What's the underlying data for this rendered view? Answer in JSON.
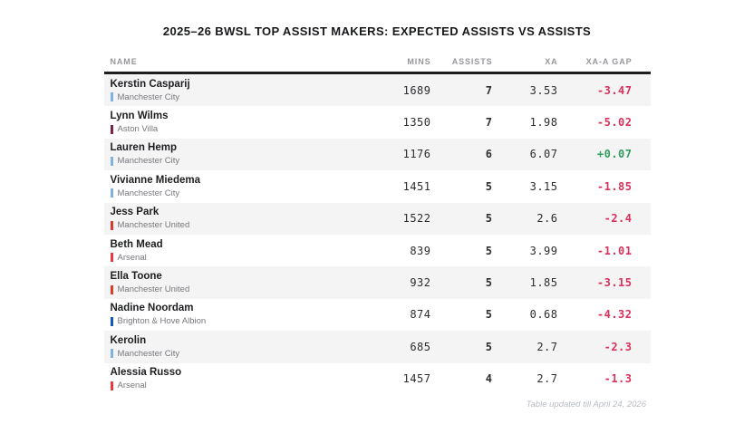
{
  "title": "2025–26 BWSL TOP ASSIST MAKERS: EXPECTED ASSISTS VS ASSISTS",
  "footer": "Table updated till April 24, 2026",
  "colors": {
    "positive": "#2f9e5f",
    "negative": "#d8315b",
    "header_text": "#96979b",
    "rule": "#1d1e20",
    "shaded_row": "#f4f4f5"
  },
  "chart_data": {
    "type": "table",
    "title": "2025–26 BWSL TOP ASSIST MAKERS: EXPECTED ASSISTS VS ASSISTS",
    "columns": [
      "NAME",
      "MINS",
      "ASSISTS",
      "XA",
      "XA-A GAP"
    ],
    "rows": [
      {
        "name": "Kerstin Casparij",
        "team": "Manchester City",
        "team_color": "#7fb2de",
        "mins": "1689",
        "assists": "7",
        "xa": "3.53",
        "gap": "-3.47"
      },
      {
        "name": "Lynn Wilms",
        "team": "Aston Villa",
        "team_color": "#7d2248",
        "mins": "1350",
        "assists": "7",
        "xa": "1.98",
        "gap": "-5.02"
      },
      {
        "name": "Lauren Hemp",
        "team": "Manchester City",
        "team_color": "#7fb2de",
        "mins": "1176",
        "assists": "6",
        "xa": "6.07",
        "gap": "+0.07"
      },
      {
        "name": "Vivianne Miedema",
        "team": "Manchester City",
        "team_color": "#7fb2de",
        "mins": "1451",
        "assists": "5",
        "xa": "3.15",
        "gap": "-1.85"
      },
      {
        "name": "Jess Park",
        "team": "Manchester United",
        "team_color": "#db3c2f",
        "mins": "1522",
        "assists": "5",
        "xa": "2.6",
        "gap": "-2.4"
      },
      {
        "name": "Beth Mead",
        "team": "Arsenal",
        "team_color": "#e93842",
        "mins": "839",
        "assists": "5",
        "xa": "3.99",
        "gap": "-1.01"
      },
      {
        "name": "Ella Toone",
        "team": "Manchester United",
        "team_color": "#db3c2f",
        "mins": "932",
        "assists": "5",
        "xa": "1.85",
        "gap": "-3.15"
      },
      {
        "name": "Nadine Noordam",
        "team": "Brighton & Hove Albion",
        "team_color": "#1159be",
        "mins": "874",
        "assists": "5",
        "xa": "0.68",
        "gap": "-4.32"
      },
      {
        "name": "Kerolin",
        "team": "Manchester City",
        "team_color": "#7fb2de",
        "mins": "685",
        "assists": "5",
        "xa": "2.7",
        "gap": "-2.3"
      },
      {
        "name": "Alessia Russo",
        "team": "Arsenal",
        "team_color": "#e93842",
        "mins": "1457",
        "assists": "4",
        "xa": "2.7",
        "gap": "-1.3"
      }
    ]
  }
}
